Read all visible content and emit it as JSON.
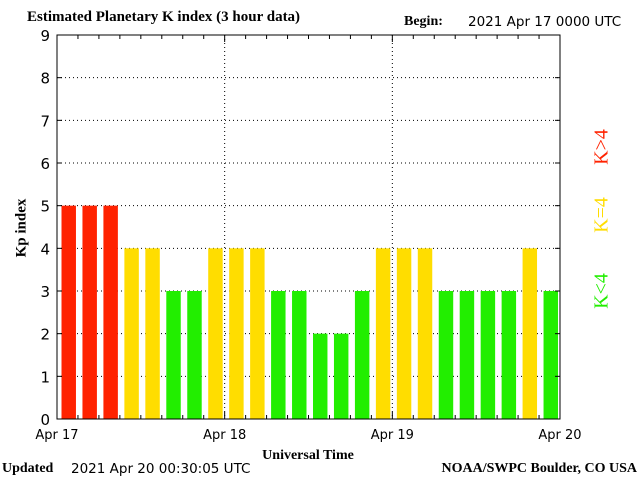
{
  "header": {
    "title": "Estimated Planetary K index (3 hour data)",
    "begin_label": "Begin:",
    "begin_value": "2021 Apr 17 0000 UTC"
  },
  "footer": {
    "updated_label": "Updated",
    "updated_value": "2021 Apr 20 00:30:05 UTC",
    "source": "NOAA/SWPC Boulder, CO USA"
  },
  "legend": {
    "high": "K>4",
    "equal": "K=4",
    "low": "K<4"
  },
  "colors": {
    "high": "#ff2200",
    "equal": "#ffdd00",
    "low": "#22ee00",
    "grid": "#000000",
    "axis": "#000000"
  },
  "chart_data": {
    "type": "bar",
    "title": "Estimated Planetary K index (3 hour data)",
    "xlabel": "Universal Time",
    "ylabel": "Kp index",
    "ylim": [
      0,
      9
    ],
    "yticks": [
      0,
      1,
      2,
      3,
      4,
      5,
      6,
      7,
      8,
      9
    ],
    "x_tick_labels": [
      "Apr 17",
      "Apr 18",
      "Apr 19",
      "Apr 20"
    ],
    "interval_hours": 3,
    "grid": true,
    "legend_position": "right",
    "values": [
      5,
      5,
      5,
      4,
      4,
      3,
      3,
      4,
      4,
      4,
      3,
      3,
      2,
      2,
      3,
      4,
      4,
      4,
      3,
      3,
      3,
      3,
      4,
      3
    ]
  }
}
